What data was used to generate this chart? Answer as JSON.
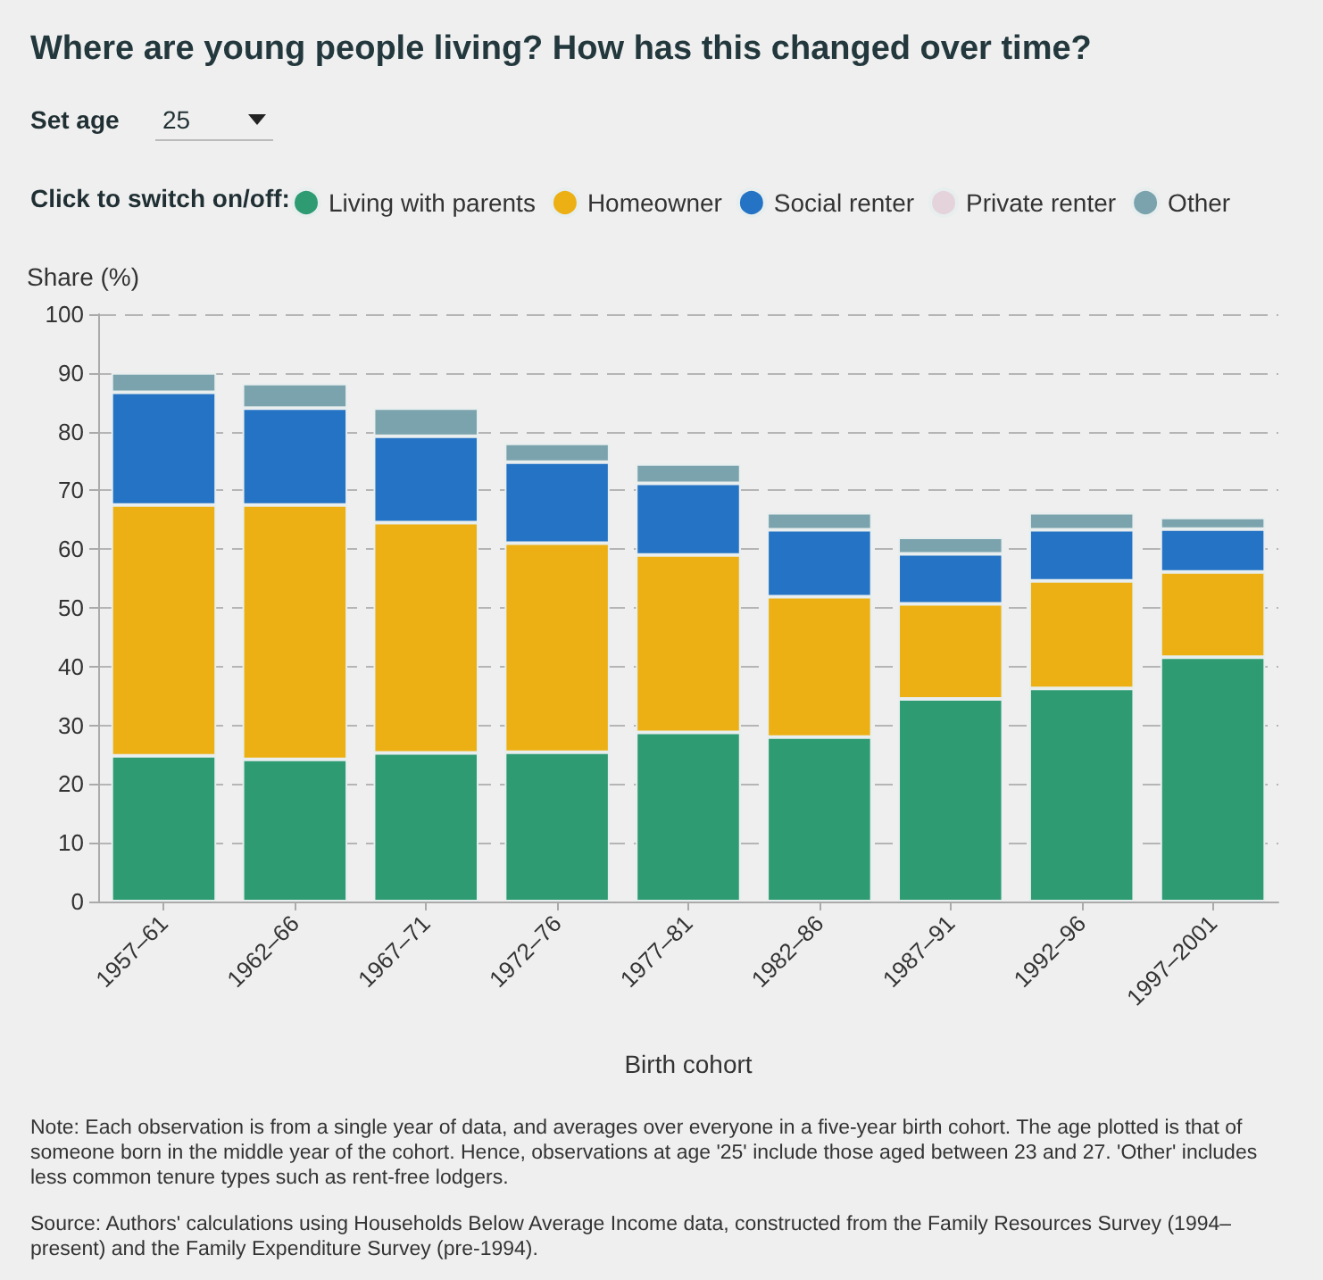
{
  "chart_data": {
    "type": "bar",
    "stacked": true,
    "title": "Where are young people living? How has this changed over time?",
    "legend_title": "Click to switch on/off:",
    "xlabel": "Birth cohort",
    "ylabel": "Share (%)",
    "categories": [
      "1957–61",
      "1962–66",
      "1967–71",
      "1972–76",
      "1977–81",
      "1982–86",
      "1987–91",
      "1992–96",
      "1997–2001"
    ],
    "series": [
      {
        "name": "Living with parents",
        "color": "#2e9b73",
        "values": [
          24.8,
          24.2,
          25.3,
          25.4,
          28.8,
          28.0,
          34.5,
          36.3,
          41.6
        ]
      },
      {
        "name": "Homeowner",
        "color": "#ecb014",
        "values": [
          42.7,
          43.3,
          39.2,
          35.6,
          30.2,
          23.9,
          16.2,
          18.3,
          14.5
        ]
      },
      {
        "name": "Social renter",
        "color": "#2473c4",
        "values": [
          19.2,
          16.5,
          14.7,
          13.8,
          12.2,
          11.4,
          8.5,
          8.7,
          7.3
        ]
      },
      {
        "name": "Private renter",
        "color": "#e5d3dc",
        "values": [
          null,
          null,
          null,
          null,
          null,
          null,
          null,
          null,
          null
        ]
      },
      {
        "name": "Other",
        "color": "#7ba3ad",
        "values": [
          3.3,
          4.2,
          4.8,
          3.2,
          3.3,
          2.9,
          2.8,
          2.9,
          2.0
        ]
      }
    ],
    "ylim": [
      0,
      100
    ],
    "yticks": [
      0,
      10,
      20,
      30,
      40,
      50,
      60,
      70,
      80,
      90,
      100
    ],
    "grid": "y",
    "legend": "top",
    "annotations": [
      "Set age",
      "25",
      "Note: Each observation is from a single year of data, and averages over everyone in a five-year birth cohort. The age plotted is that of someone born in the middle year of the cohort. Hence, observations at age '25' include those aged between 23 and 27. 'Other' includes less common tenure types such as rent-free lodgers.",
      "Source: Authors' calculations using Households Below Average Income data, constructed from the Family Resources Survey (1994–present) and the Family Expenditure Survey (pre-1994)."
    ]
  }
}
